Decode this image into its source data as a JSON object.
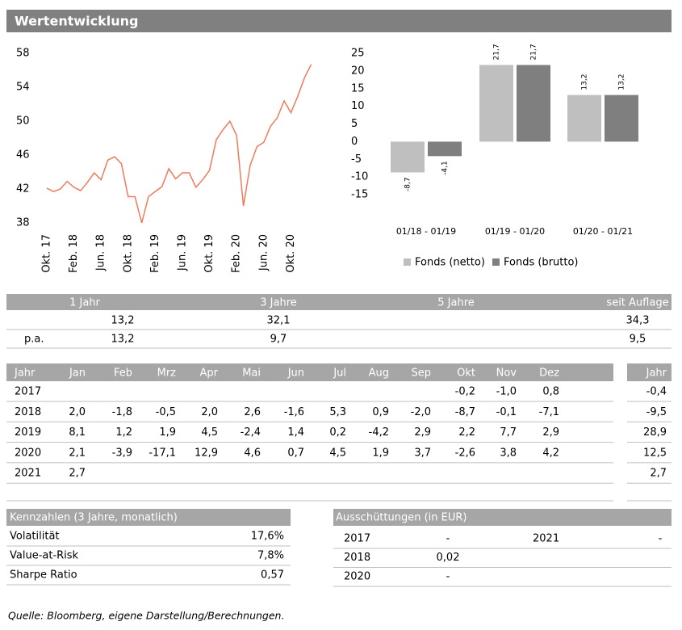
{
  "header": {
    "title": "Wertentwicklung"
  },
  "chart_data": [
    {
      "type": "line",
      "categories": [
        "Okt. 17",
        null,
        null,
        null,
        "Feb. 18",
        null,
        null,
        null,
        "Jun. 18",
        null,
        null,
        null,
        "Okt. 18",
        null,
        null,
        null,
        "Feb. 19",
        null,
        null,
        null,
        "Jun. 19",
        null,
        null,
        null,
        "Okt. 19",
        null,
        null,
        null,
        "Feb. 20",
        null,
        null,
        null,
        "Jun. 20",
        null,
        null,
        null,
        "Okt. 20",
        null,
        null,
        null
      ],
      "values": [
        42.1,
        41.7,
        42.0,
        42.9,
        42.2,
        41.8,
        42.8,
        43.9,
        43.1,
        45.4,
        45.8,
        45.0,
        41.1,
        41.1,
        38.0,
        41.1,
        41.7,
        42.3,
        44.4,
        43.2,
        43.9,
        43.9,
        42.2,
        43.1,
        44.2,
        47.8,
        49.0,
        50.0,
        48.3,
        40.0,
        44.8,
        47.0,
        47.5,
        49.4,
        50.4,
        52.4,
        51.0,
        52.9,
        55.1,
        56.7
      ],
      "color": "#f07a5a",
      "ylim": [
        38,
        58
      ],
      "yticks": [
        38,
        42,
        46,
        50,
        54,
        58
      ]
    },
    {
      "type": "bar",
      "categories": [
        "01/18 - 01/19",
        "01/19 - 01/20",
        "01/20 - 01/21"
      ],
      "series": [
        {
          "name": "Fonds (netto)",
          "color": "#bfbfbf",
          "values": [
            -8.7,
            21.7,
            13.2
          ],
          "value_labels": [
            "-8,7",
            "21,7",
            "13,2"
          ]
        },
        {
          "name": "Fonds (brutto)",
          "color": "#7f7f7f",
          "values": [
            -4.1,
            21.7,
            13.2
          ],
          "value_labels": [
            "-4,1",
            "21,7",
            "13,2"
          ]
        }
      ],
      "ylim": [
        -15,
        25
      ],
      "yticks": [
        -15,
        -10,
        -5,
        0,
        5,
        10,
        15,
        20,
        25
      ],
      "legend": "bottom"
    }
  ],
  "performance": {
    "header": [
      "1 Jahr",
      "3 Jahre",
      "5 Jahre",
      "seit Auflage"
    ],
    "rows": [
      {
        "cells": [
          "13,2",
          "32,1",
          null,
          "34,3"
        ]
      },
      {
        "label": "p.a.",
        "cells": [
          "13,2",
          "9,7",
          null,
          "9,5"
        ]
      }
    ]
  },
  "monthly": {
    "header": [
      "Jahr",
      "Jan",
      "Feb",
      "Mrz",
      "Apr",
      "Mai",
      "Jun",
      "Jul",
      "Aug",
      "Sep",
      "Okt",
      "Nov",
      "Dez"
    ],
    "total_header": "Jahr",
    "rows": [
      {
        "year": "2017",
        "months": [
          null,
          null,
          null,
          null,
          null,
          null,
          null,
          null,
          null,
          "-0,2",
          "-1,0",
          "0,8"
        ],
        "total": "-0,4"
      },
      {
        "year": "2018",
        "months": [
          "2,0",
          "-1,8",
          "-0,5",
          "2,0",
          "2,6",
          "-1,6",
          "5,3",
          "0,9",
          "-2,0",
          "-8,7",
          "-0,1",
          "-7,1"
        ],
        "total": "-9,5"
      },
      {
        "year": "2019",
        "months": [
          "8,1",
          "1,2",
          "1,9",
          "4,5",
          "-2,4",
          "1,4",
          "0,2",
          "-4,2",
          "2,9",
          "2,2",
          "7,7",
          "2,9"
        ],
        "total": "28,9"
      },
      {
        "year": "2020",
        "months": [
          "2,1",
          "-3,9",
          "-17,1",
          "12,9",
          "4,6",
          "0,7",
          "4,5",
          "1,9",
          "3,7",
          "-2,6",
          "3,8",
          "4,2"
        ],
        "total": "12,5"
      },
      {
        "year": "2021",
        "months": [
          "2,7",
          null,
          null,
          null,
          null,
          null,
          null,
          null,
          null,
          null,
          null,
          null
        ],
        "total": "2,7"
      }
    ]
  },
  "kennzahlen": {
    "title": "Kennzahlen (3 Jahre, monatlich)",
    "rows": [
      [
        "Volatilität",
        "17,6%"
      ],
      [
        "Value-at-Risk",
        "7,8%"
      ],
      [
        "Sharpe Ratio",
        "0,57"
      ]
    ]
  },
  "ausschuettungen": {
    "title": "Ausschüttungen (in EUR)",
    "rows": [
      [
        "2017",
        "-",
        "2021",
        "-"
      ],
      [
        "2018",
        "0,02"
      ],
      [
        "2020",
        "-"
      ]
    ]
  },
  "source": "Quelle: Bloomberg, eigene Darstellung/Berechnungen."
}
